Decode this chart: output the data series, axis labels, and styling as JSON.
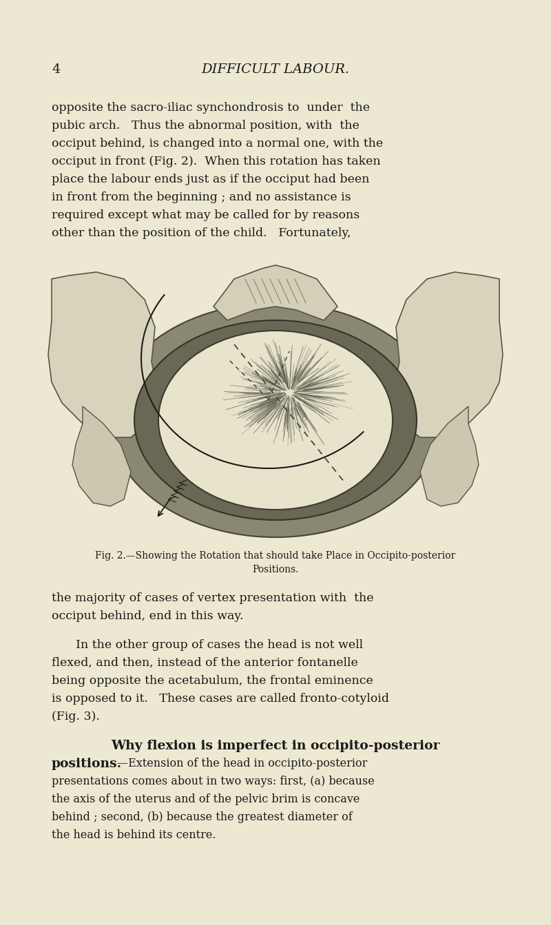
{
  "bg_color": "#ede8d2",
  "text_color": "#1a1a18",
  "dark_color": "#2a2a28",
  "header_number": "4",
  "header_title": "Difficult Labour.",
  "para1_lines": [
    "opposite the sacro-iliac synchondrosis to  under  the",
    "pubic arch.   Thus the abnormal position, with  the",
    "occiput behind, is changed into a normal one, with the",
    "occiput in front (Fig. 2).  When this rotation has taken",
    "place the labour ends just as if the occiput had been",
    "in front from the beginning ; and no assistance is",
    "required except what may be called for by reasons",
    "other than the position of the child.   Fortunately,"
  ],
  "fig_caption_line1": "Fig. 2.—Showing the Rotation that should take Place in Occipito-posterior",
  "fig_caption_line2": "Positions.",
  "para2_lines": [
    "the majority of cases of vertex presentation with  the",
    "occiput behind, end in this way."
  ],
  "para3_lines": [
    "In the other group of cases the head is not well",
    "flexed, and then, instead of the anterior fontanelle",
    "being opposite the acetabulum, the frontal eminence",
    "is opposed to it.   These cases are called fronto-cotyloid",
    "(Fig. 3)."
  ],
  "bold_line1": "Why flexion is imperfect in occipito-posterior",
  "bold_line2": "positions.",
  "bold_inline": "—Extension of the head in occipito-posterior",
  "para4_lines": [
    "presentations comes about in two ways: first, (a) because",
    "the axis of the uterus and of the pelvic brim is concave",
    "behind ; second, (b) because the greatest diameter of",
    "the head is behind its centre."
  ]
}
